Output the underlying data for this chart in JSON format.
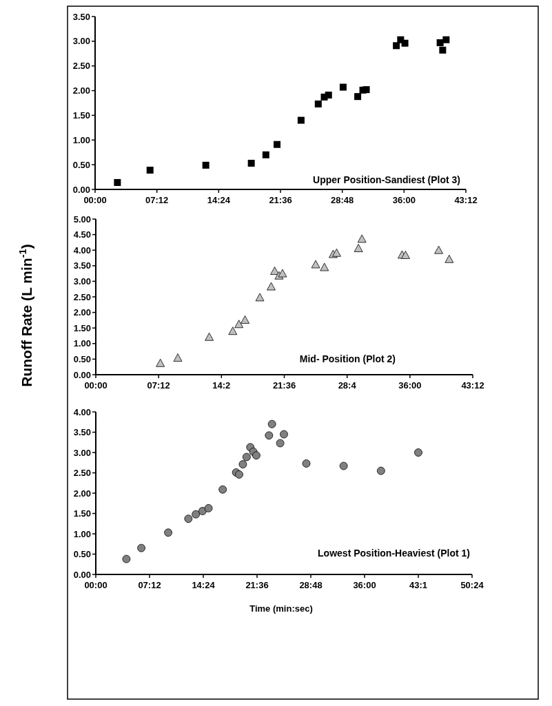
{
  "chart_data": [
    {
      "type": "scatter",
      "marker": "square",
      "series": [
        {
          "color": "#000000",
          "x": [
            2.6,
            6.4,
            12.9,
            18.2,
            19.9,
            21.2,
            24.0,
            26.0,
            26.7,
            27.2,
            28.9,
            30.6,
            31.2,
            31.6,
            35.1,
            35.6,
            36.1,
            40.2,
            40.5,
            40.9
          ],
          "values": [
            0.14,
            0.39,
            0.49,
            0.53,
            0.7,
            0.91,
            1.4,
            1.73,
            1.87,
            1.91,
            2.07,
            1.88,
            2.01,
            2.02,
            2.91,
            3.03,
            2.96,
            2.97,
            2.82,
            3.03
          ]
        }
      ],
      "xlim": [
        0,
        43.2
      ],
      "xticks": [
        {
          "value": 0,
          "label": "00:00"
        },
        {
          "value": 7.2,
          "label": "07:12"
        },
        {
          "value": 14.4,
          "label": "14:24"
        },
        {
          "value": 21.6,
          "label": "21:36"
        },
        {
          "value": 28.8,
          "label": "28:48"
        },
        {
          "value": 36,
          "label": "36:00"
        },
        {
          "value": 43.2,
          "label": "43:12"
        }
      ],
      "ylim": [
        0,
        3.5
      ],
      "yticks": [
        {
          "value": 0,
          "label": "0.00"
        },
        {
          "value": 0.5,
          "label": "0.50"
        },
        {
          "value": 1,
          "label": "1.00"
        },
        {
          "value": 1.5,
          "label": "1.50"
        },
        {
          "value": 2,
          "label": "2.00"
        },
        {
          "value": 2.5,
          "label": "2.50"
        },
        {
          "value": 3,
          "label": "3.00"
        },
        {
          "value": 3.5,
          "label": "3.50"
        }
      ],
      "annotations": [
        "Upper Position-Sandiest (Plot 3)"
      ]
    },
    {
      "type": "scatter",
      "marker": "triangle",
      "ylabel": "Runoff Rate (L min$^{-1}$)",
      "series": [
        {
          "color": "#c0c0c0",
          "x": [
            7.4,
            9.4,
            13.0,
            15.7,
            16.4,
            17.1,
            18.8,
            20.1,
            20.5,
            21.0,
            21.4,
            25.2,
            26.2,
            27.2,
            27.6,
            30.1,
            30.5,
            35.1,
            35.5,
            39.3,
            40.5
          ],
          "values": [
            0.37,
            0.54,
            1.21,
            1.4,
            1.62,
            1.76,
            2.48,
            2.83,
            3.33,
            3.18,
            3.25,
            3.54,
            3.45,
            3.87,
            3.91,
            4.06,
            4.36,
            3.85,
            3.84,
            4.0,
            3.71
          ]
        }
      ],
      "xlim": [
        0,
        43.2
      ],
      "xticks": [
        {
          "value": 0,
          "label": "00:00"
        },
        {
          "value": 7.2,
          "label": "07:12"
        },
        {
          "value": 14.4,
          "label": "14:2"
        },
        {
          "value": 21.6,
          "label": "21:36"
        },
        {
          "value": 28.8,
          "label": "28:4"
        },
        {
          "value": 36,
          "label": "36:00"
        },
        {
          "value": 43.2,
          "label": "43:12"
        }
      ],
      "ylim": [
        0,
        5
      ],
      "yticks": [
        {
          "value": 0,
          "label": "0.00"
        },
        {
          "value": 0.5,
          "label": "0.50"
        },
        {
          "value": 1,
          "label": "1.00"
        },
        {
          "value": 1.5,
          "label": "1.50"
        },
        {
          "value": 2,
          "label": "2.00"
        },
        {
          "value": 2.5,
          "label": "2.50"
        },
        {
          "value": 3,
          "label": "3.00"
        },
        {
          "value": 3.5,
          "label": "3.50"
        },
        {
          "value": 4,
          "label": "4.00"
        },
        {
          "value": 4.5,
          "label": "4.50"
        },
        {
          "value": 5,
          "label": "5.00"
        }
      ],
      "annotations": [
        "Mid- Position (Plot 2)"
      ]
    },
    {
      "type": "scatter",
      "marker": "circle",
      "xlabel": "Time (min:sec)",
      "series": [
        {
          "color": "#808080",
          "x": [
            4.1,
            6.1,
            9.7,
            12.4,
            13.4,
            14.3,
            15.1,
            17.0,
            18.8,
            19.2,
            19.7,
            20.2,
            20.7,
            21.1,
            21.5,
            23.2,
            23.6,
            24.7,
            25.2,
            28.2,
            33.2,
            38.2,
            43.2
          ],
          "values": [
            0.38,
            0.65,
            1.03,
            1.37,
            1.48,
            1.56,
            1.63,
            2.09,
            2.51,
            2.46,
            2.71,
            2.89,
            3.13,
            3.02,
            2.93,
            3.42,
            3.7,
            3.23,
            3.45,
            2.73,
            2.67,
            2.55,
            3.0
          ]
        }
      ],
      "xlim": [
        0,
        50.4
      ],
      "xticks": [
        {
          "value": 0,
          "label": "00:00"
        },
        {
          "value": 7.2,
          "label": "07:12"
        },
        {
          "value": 14.4,
          "label": "14:24"
        },
        {
          "value": 21.6,
          "label": "21:36"
        },
        {
          "value": 28.8,
          "label": "28:48"
        },
        {
          "value": 36,
          "label": "36:00"
        },
        {
          "value": 43.2,
          "label": "43:1"
        },
        {
          "value": 50.4,
          "label": "50:24"
        }
      ],
      "ylim": [
        0,
        4
      ],
      "yticks": [
        {
          "value": 0,
          "label": "0.00"
        },
        {
          "value": 0.5,
          "label": "0.50"
        },
        {
          "value": 1,
          "label": "1.00"
        },
        {
          "value": 1.5,
          "label": "1.50"
        },
        {
          "value": 2,
          "label": "2.00"
        },
        {
          "value": 2.5,
          "label": "2.50"
        },
        {
          "value": 3,
          "label": "3.00"
        },
        {
          "value": 3.5,
          "label": "3.50"
        },
        {
          "value": 4,
          "label": "4.00"
        }
      ],
      "annotations": [
        "Lowest Position-Heaviest (Plot 1)"
      ]
    }
  ]
}
